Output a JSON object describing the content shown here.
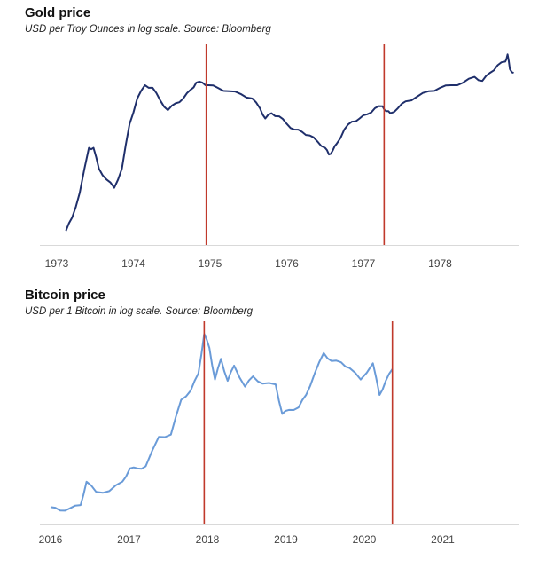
{
  "chart_data": [
    {
      "type": "line",
      "title": "Gold price",
      "subtitle": "USD per Troy Ounces in log scale. Source: Bloomberg",
      "x_ticks": [
        "1973",
        "1974",
        "1975",
        "1976",
        "1977",
        "1978"
      ],
      "y_scale": "log",
      "y_tick_labels": [],
      "grid": false,
      "line_color": "#1f2f6b",
      "marker_color": "#c0392b",
      "vertical_markers_x": [
        1974.95,
        1977.27
      ],
      "series": [
        {
          "values": [
            [
              1973.12,
              66
            ],
            [
              1973.2,
              72
            ],
            [
              1973.3,
              85
            ],
            [
              1973.42,
              115
            ],
            [
              1973.48,
              115
            ],
            [
              1973.55,
              100
            ],
            [
              1973.65,
              93
            ],
            [
              1973.75,
              88
            ],
            [
              1973.85,
              100
            ],
            [
              1973.95,
              135
            ],
            [
              1974.05,
              160
            ],
            [
              1974.15,
              175
            ],
            [
              1974.25,
              172
            ],
            [
              1974.35,
              158
            ],
            [
              1974.45,
              148
            ],
            [
              1974.55,
              155
            ],
            [
              1974.65,
              160
            ],
            [
              1974.75,
              170
            ],
            [
              1974.82,
              178
            ],
            [
              1974.9,
              178
            ],
            [
              1974.98,
              175
            ],
            [
              1975.1,
              172
            ],
            [
              1975.25,
              168
            ],
            [
              1975.4,
              165
            ],
            [
              1975.55,
              160
            ],
            [
              1975.65,
              150
            ],
            [
              1975.72,
              140
            ],
            [
              1975.8,
              145
            ],
            [
              1975.9,
              142
            ],
            [
              1976.0,
              135
            ],
            [
              1976.1,
              130
            ],
            [
              1976.2,
              128
            ],
            [
              1976.3,
              125
            ],
            [
              1976.4,
              120
            ],
            [
              1976.5,
              115
            ],
            [
              1976.55,
              110
            ],
            [
              1976.6,
              113
            ],
            [
              1976.65,
              118
            ],
            [
              1976.75,
              130
            ],
            [
              1976.85,
              137
            ],
            [
              1976.95,
              140
            ],
            [
              1977.05,
              144
            ],
            [
              1977.15,
              150
            ],
            [
              1977.25,
              152
            ],
            [
              1977.3,
              147
            ],
            [
              1977.35,
              145
            ],
            [
              1977.45,
              150
            ],
            [
              1977.55,
              157
            ],
            [
              1977.7,
              162
            ],
            [
              1977.85,
              168
            ],
            [
              1978.0,
              172
            ],
            [
              1978.15,
              175
            ],
            [
              1978.3,
              178
            ],
            [
              1978.45,
              185
            ],
            [
              1978.55,
              180
            ],
            [
              1978.65,
              190
            ],
            [
              1978.75,
              200
            ],
            [
              1978.85,
              205
            ],
            [
              1978.88,
              215
            ],
            [
              1978.91,
              195
            ],
            [
              1978.96,
              190
            ]
          ]
        }
      ]
    },
    {
      "type": "line",
      "title": "Bitcoin price",
      "subtitle": "USD per 1 Bitcoin in log scale. Source: Bloomberg",
      "x_ticks": [
        "2016",
        "2017",
        "2018",
        "2019",
        "2020",
        "2021"
      ],
      "y_scale": "log",
      "y_tick_labels": [],
      "grid": false,
      "line_color": "#6a9bd8",
      "marker_color": "#c0392b",
      "vertical_markers_x": [
        "2017-12-17",
        "2020-05-11"
      ],
      "series": [
        {
          "values": [
            [
              "2016-01-01",
              430
            ],
            [
              "2016-02-15",
              400
            ],
            [
              "2016-04-01",
              420
            ],
            [
              "2016-05-20",
              450
            ],
            [
              "2016-06-17",
              750
            ],
            [
              "2016-08-01",
              600
            ],
            [
              "2016-10-01",
              610
            ],
            [
              "2016-12-01",
              750
            ],
            [
              "2017-01-05",
              1000
            ],
            [
              "2017-02-10",
              1000
            ],
            [
              "2017-03-20",
              1050
            ],
            [
              "2017-05-20",
              2000
            ],
            [
              "2017-07-15",
              2100
            ],
            [
              "2017-09-01",
              4500
            ],
            [
              "2017-10-15",
              5500
            ],
            [
              "2017-11-20",
              8000
            ],
            [
              "2017-12-17",
              19000
            ],
            [
              "2018-01-10",
              14000
            ],
            [
              "2018-02-05",
              7000
            ],
            [
              "2018-03-05",
              11000
            ],
            [
              "2018-04-05",
              6800
            ],
            [
              "2018-05-05",
              9500
            ],
            [
              "2018-06-25",
              6000
            ],
            [
              "2018-08-01",
              7500
            ],
            [
              "2018-09-15",
              6400
            ],
            [
              "2018-11-14",
              6300
            ],
            [
              "2018-12-15",
              3300
            ],
            [
              "2019-01-15",
              3600
            ],
            [
              "2019-03-01",
              3800
            ],
            [
              "2019-04-05",
              5000
            ],
            [
              "2019-05-15",
              8000
            ],
            [
              "2019-06-26",
              12500
            ],
            [
              "2019-08-01",
              10500
            ],
            [
              "2019-09-15",
              10200
            ],
            [
              "2019-10-25",
              9000
            ],
            [
              "2019-12-15",
              7000
            ],
            [
              "2020-02-10",
              10000
            ],
            [
              "2020-03-12",
              5000
            ],
            [
              "2020-04-10",
              6800
            ],
            [
              "2020-05-11",
              8800
            ]
          ]
        }
      ]
    }
  ]
}
